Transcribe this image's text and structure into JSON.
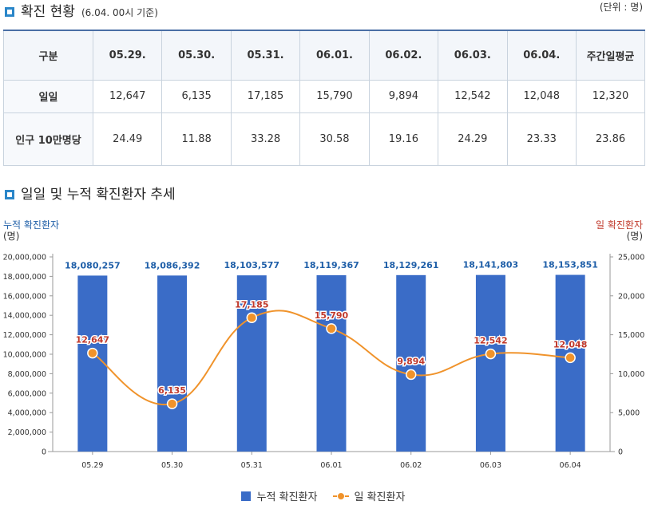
{
  "section1": {
    "title": "확진 현황",
    "subtitle": "(6.04. 00시 기준)",
    "unit": "(단위 : 명)"
  },
  "table": {
    "header": [
      "구분",
      "05.29.",
      "05.30.",
      "05.31.",
      "06.01.",
      "06.02.",
      "06.03.",
      "06.04.",
      "주간일평균"
    ],
    "rows": [
      {
        "label": "일일",
        "values": [
          "12,647",
          "6,135",
          "17,185",
          "15,790",
          "9,894",
          "12,542",
          "12,048",
          "12,320"
        ]
      },
      {
        "label": "인구 10만명당",
        "values": [
          "24.49",
          "11.88",
          "33.28",
          "30.58",
          "19.16",
          "24.29",
          "23.33",
          "23.86"
        ]
      }
    ]
  },
  "section2": {
    "title": "일일 및 누적 확진환자 추세"
  },
  "chart_data": {
    "type": "bar",
    "categories": [
      "05.29",
      "05.30",
      "05.31",
      "06.01",
      "06.02",
      "06.03",
      "06.04"
    ],
    "series": [
      {
        "name": "누적 확진환자",
        "type": "bar",
        "axis": "left",
        "values": [
          18080257,
          18086392,
          18103577,
          18119367,
          18129261,
          18141803,
          18153851
        ],
        "labels": [
          "18,080,257",
          "18,086,392",
          "18,103,577",
          "18,119,367",
          "18,129,261",
          "18,141,803",
          "18,153,851"
        ],
        "color": "#3a6cc7"
      },
      {
        "name": "일 확진환자",
        "type": "line",
        "axis": "right",
        "values": [
          12647,
          6135,
          17185,
          15790,
          9894,
          12542,
          12048
        ],
        "labels": [
          "12,647",
          "6,135",
          "17,185",
          "15,790",
          "9,894",
          "12,542",
          "12,048"
        ],
        "color": "#f0932b"
      }
    ],
    "left_axis": {
      "title": "누적 확진환자",
      "unit": "(명)",
      "ylim": [
        0,
        20000000
      ],
      "ticks": [
        "20,000,000",
        "18,000,000",
        "16,000,000",
        "14,000,000",
        "12,000,000",
        "10,000,000",
        "8,000,000",
        "6,000,000",
        "4,000,000",
        "2,000,000",
        "0"
      ],
      "color": "#1f5fa8"
    },
    "right_axis": {
      "title": "일 확진환자",
      "unit": "(명)",
      "ylim": [
        0,
        25000
      ],
      "ticks": [
        "25,000",
        "20,000",
        "15,000",
        "10,000",
        "5,000",
        "0"
      ],
      "color": "#c0392b"
    },
    "bar_label_color": "#1f5fa8",
    "line_label_color": "#c0392b",
    "grid": false,
    "legend": "bottom"
  }
}
